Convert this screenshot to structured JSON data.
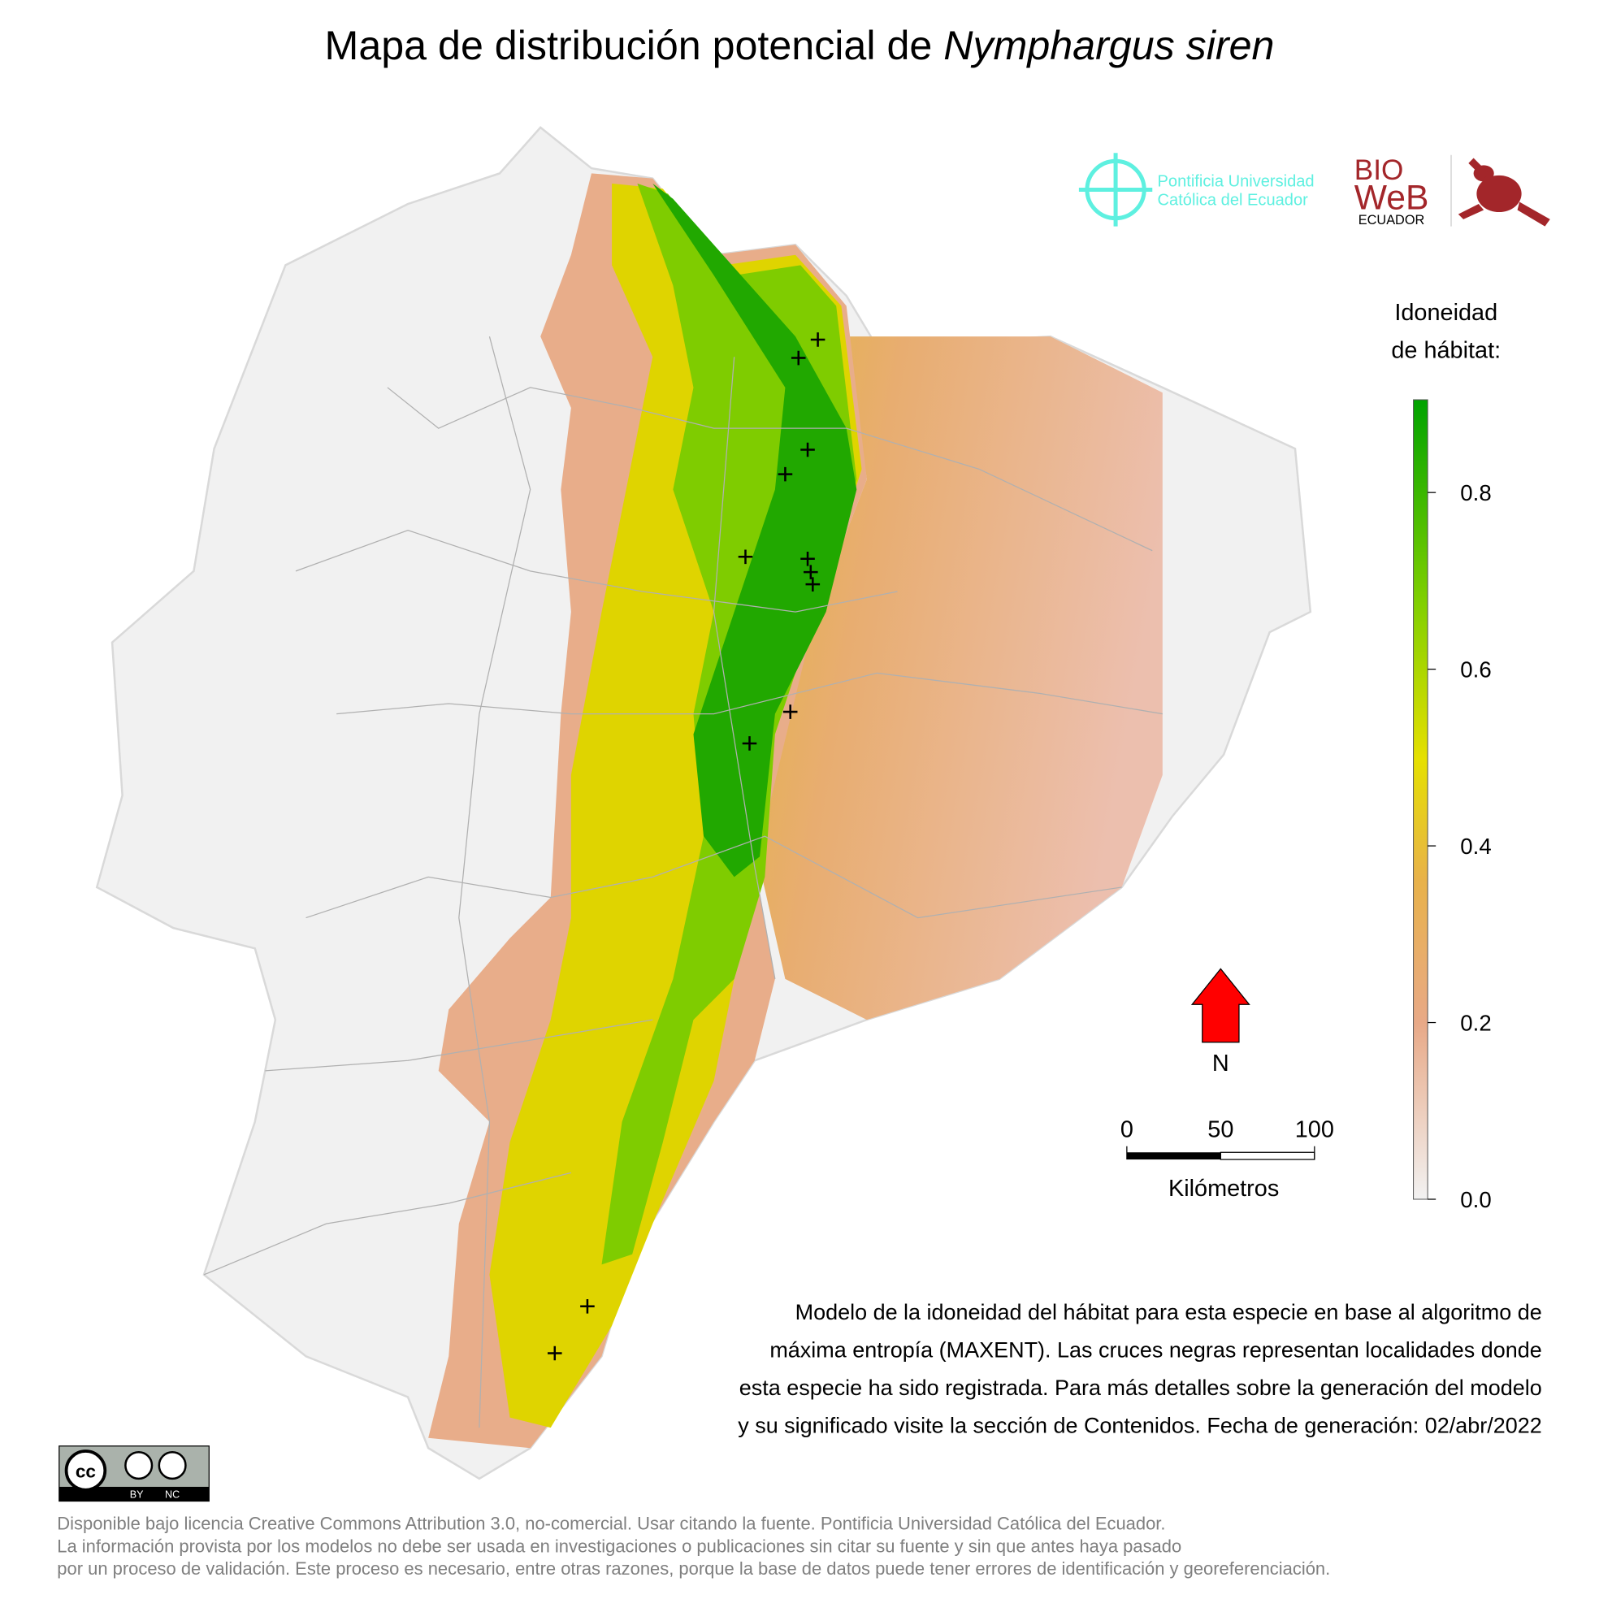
{
  "title": {
    "prefix": "Mapa de distribución potencial de ",
    "species": "Nymphargus siren"
  },
  "logos": {
    "puce_line1": "Pontificia Universidad",
    "puce_line2": "Católica del Ecuador",
    "bioweb_line1": "BIO",
    "bioweb_line2": "WeB",
    "bioweb_line3": "ECUADOR"
  },
  "legend": {
    "title_line1": "Idoneidad",
    "title_line2": "de hábitat:",
    "ticks": [
      "0.8",
      "0.6",
      "0.4",
      "0.2",
      "0.0"
    ],
    "tick_values": [
      0.8,
      0.6,
      0.4,
      0.2,
      0.0
    ],
    "range": [
      0.0,
      0.9
    ],
    "colors": {
      "high": "#00a300",
      "mid_high": "#7fcf00",
      "mid": "#e6e000",
      "mid_low": "#e8b24a",
      "low": "#e8a987",
      "zero": "#f2f2f2"
    }
  },
  "north_arrow": {
    "label": "N",
    "color": "#ff0000"
  },
  "scale_bar": {
    "labels": [
      "0",
      "50",
      "100"
    ],
    "unit": "Kilómetros"
  },
  "description": {
    "lines": [
      "Modelo de la idoneidad del hábitat para esta especie en base al algoritmo de",
      "máxima entropía (MAXENT). Las cruces negras representan localidades donde",
      "esta especie ha sido registrada. Para más detalles sobre la generación del modelo",
      "y su significado visite la sección de Contenidos. Fecha de generación: 02/abr/2022"
    ]
  },
  "license_badge": {
    "by": "BY",
    "nc": "NC",
    "cc": "cc"
  },
  "footer": {
    "lines": [
      "Disponible bajo licencia Creative Commons Attribution 3.0, no-comercial. Usar citando la fuente. Pontificia Universidad Católica del Ecuador.",
      "La información provista por los modelos no debe ser usada en investigaciones o publicaciones sin citar su fuente y sin que antes haya pasado",
      "por un proceso de validación. Este proceso es necesario, entre otras razones, porque la base de datos puede tener errores de identificación y georeferenciación."
    ]
  }
}
